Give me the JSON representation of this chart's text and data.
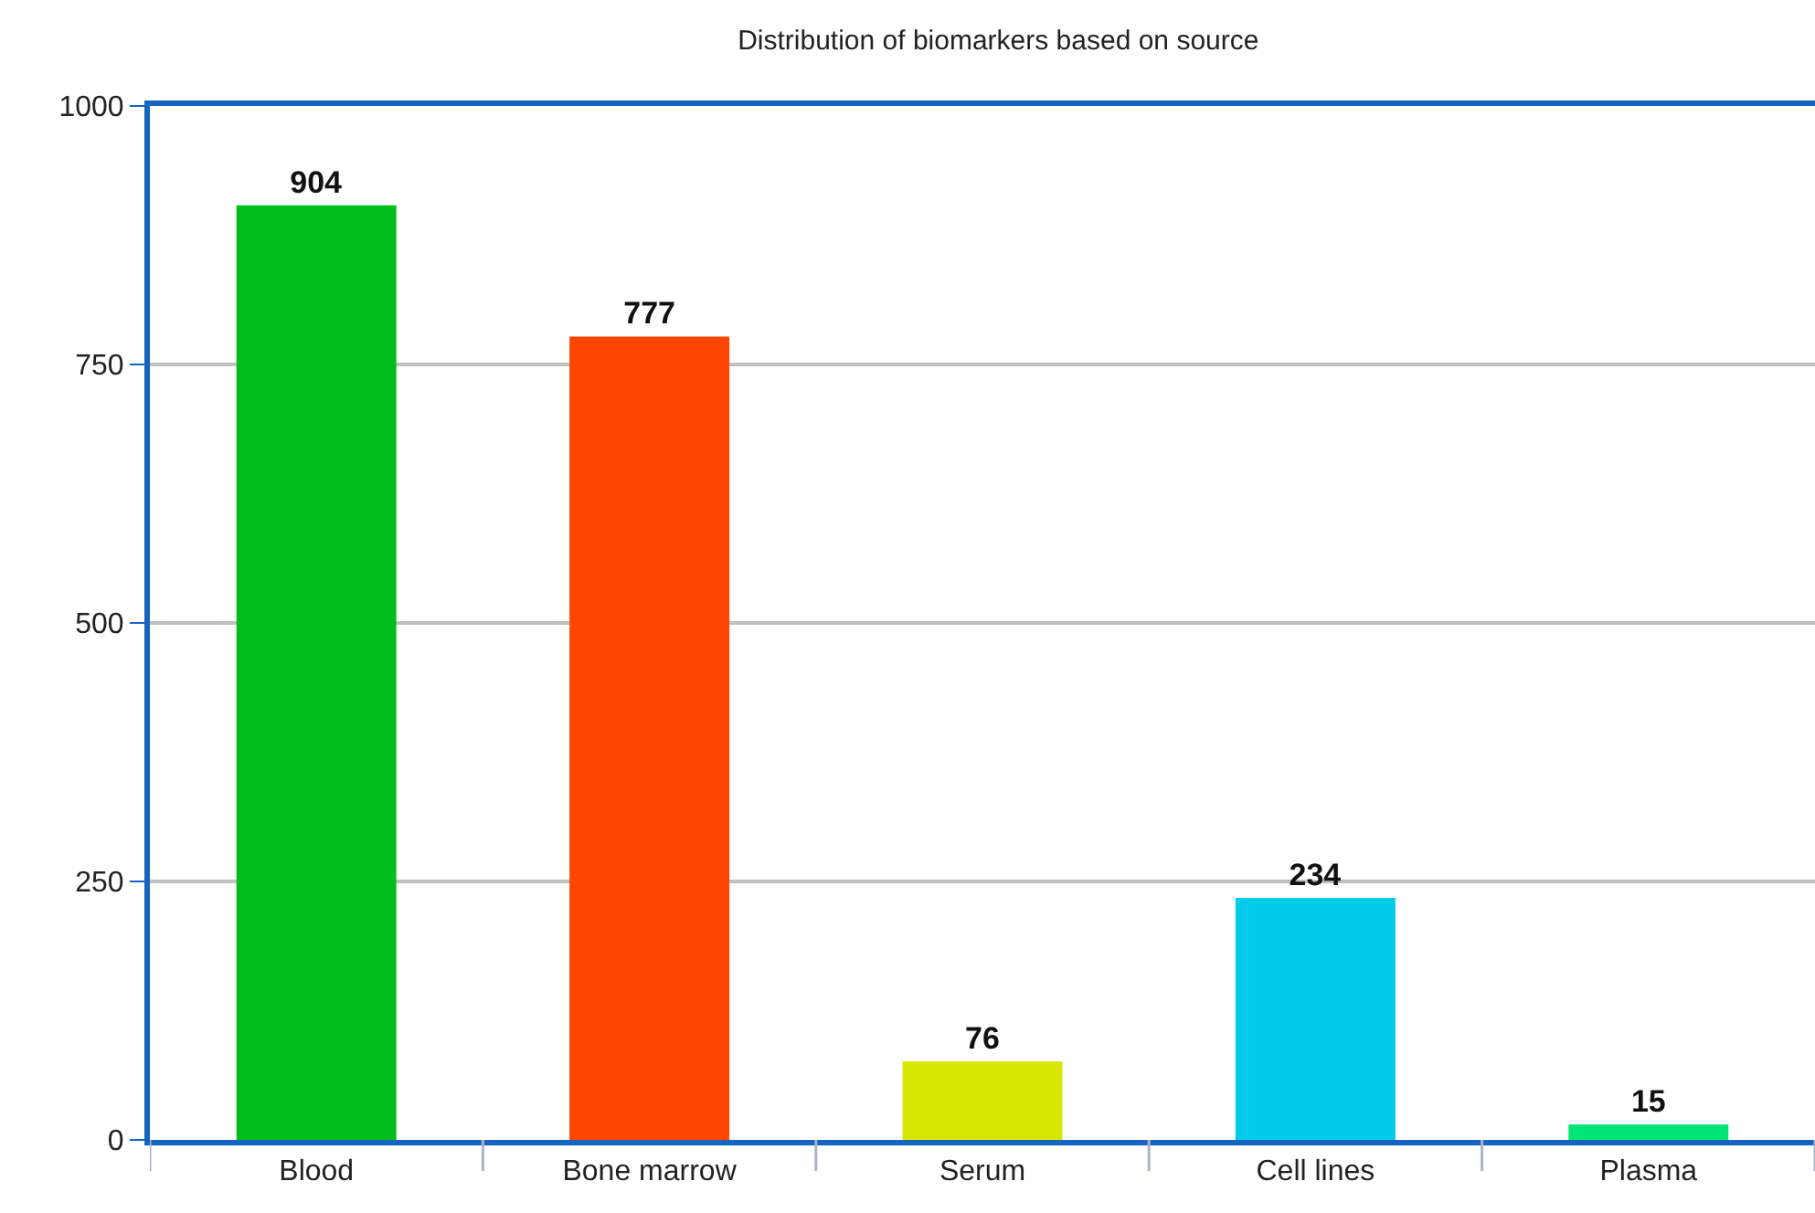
{
  "chart_data": {
    "type": "bar",
    "title": "Distribution of biomarkers based on source",
    "categories": [
      "Blood",
      "Bone marrow",
      "Serum",
      "Cell lines",
      "Plasma"
    ],
    "values": [
      904,
      777,
      76,
      234,
      15
    ],
    "colors": [
      "#00be1a",
      "#ff4500",
      "#d9e600",
      "#00ccea",
      "#00e676"
    ],
    "ylim": [
      0,
      1000
    ],
    "yticks": [
      0,
      250,
      500,
      750,
      1000
    ],
    "grid": "y",
    "data_labels": true,
    "legend": false
  }
}
